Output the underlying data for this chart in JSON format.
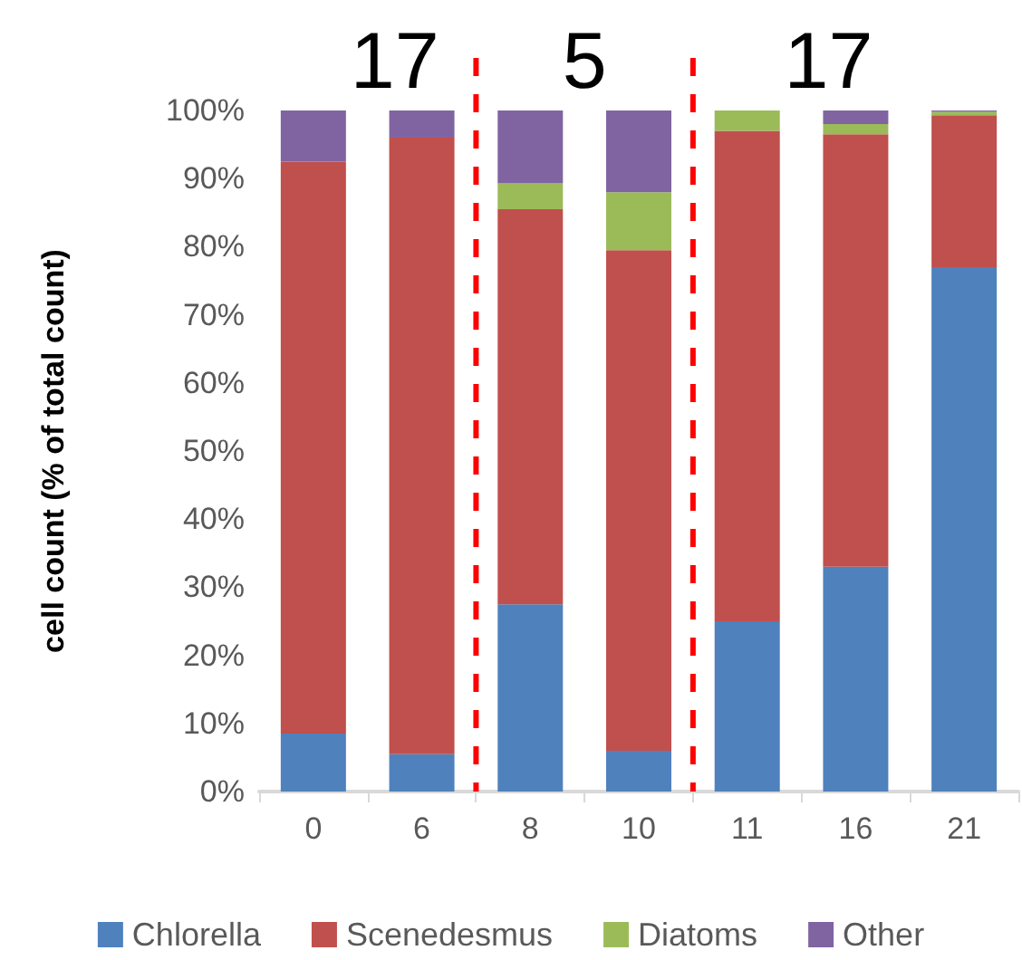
{
  "chart_data": {
    "type": "bar",
    "stacked": true,
    "ylabel": "cell count (% of total count)",
    "categories": [
      "0",
      "6",
      "8",
      "10",
      "11",
      "16",
      "21"
    ],
    "series": [
      {
        "name": "Chlorella",
        "color": "#4f81bd",
        "values": [
          8.5,
          5.5,
          27.5,
          6,
          25,
          33,
          77
        ]
      },
      {
        "name": "Scenedesmus",
        "color": "#c0504d",
        "values": [
          84,
          90.5,
          58,
          73.5,
          72,
          63.5,
          22.3
        ]
      },
      {
        "name": "Diatoms",
        "color": "#9bbb59",
        "values": [
          0,
          0,
          3.8,
          8.5,
          3,
          1.5,
          0.5
        ]
      },
      {
        "name": "Other",
        "color": "#8064a2",
        "values": [
          7.5,
          4,
          10.7,
          12,
          0,
          2,
          0.2
        ]
      }
    ],
    "ylim": [
      0,
      100
    ],
    "yticks": [
      {
        "value": 0,
        "label": "0%"
      },
      {
        "value": 10,
        "label": "10%"
      },
      {
        "value": 20,
        "label": "20%"
      },
      {
        "value": 30,
        "label": "30%"
      },
      {
        "value": 40,
        "label": "40%"
      },
      {
        "value": 50,
        "label": "50%"
      },
      {
        "value": 60,
        "label": "60%"
      },
      {
        "value": 70,
        "label": "70%"
      },
      {
        "value": 80,
        "label": "80%"
      },
      {
        "value": 90,
        "label": "90%"
      },
      {
        "value": 100,
        "label": "100%"
      }
    ],
    "annotations": [
      "17",
      "5",
      "17"
    ],
    "legend": "bottom",
    "grid": false
  }
}
